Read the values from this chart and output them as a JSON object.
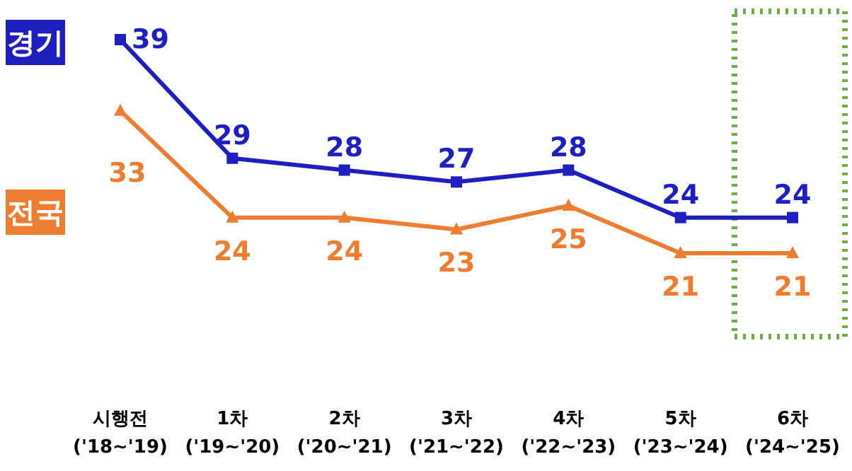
{
  "chart_data": {
    "type": "line",
    "categories": [
      "시행전\n('18~'19)",
      "1차\n('19~'20)",
      "2차\n('20~'21)",
      "3차\n('21~'22)",
      "4차\n('22~'23)",
      "5차\n('23~'24)",
      "6차\n('24~'25)"
    ],
    "series": [
      {
        "name": "경기",
        "color": "#1f1fbf",
        "values": [
          39,
          29,
          28,
          27,
          28,
          24,
          24
        ],
        "marker": "square"
      },
      {
        "name": "전국",
        "color": "#ed7d31",
        "values": [
          33,
          24,
          24,
          23,
          25,
          21,
          21
        ],
        "marker": "triangle"
      }
    ],
    "data_labels": true,
    "legend": "left",
    "line_style": "solid"
  }
}
